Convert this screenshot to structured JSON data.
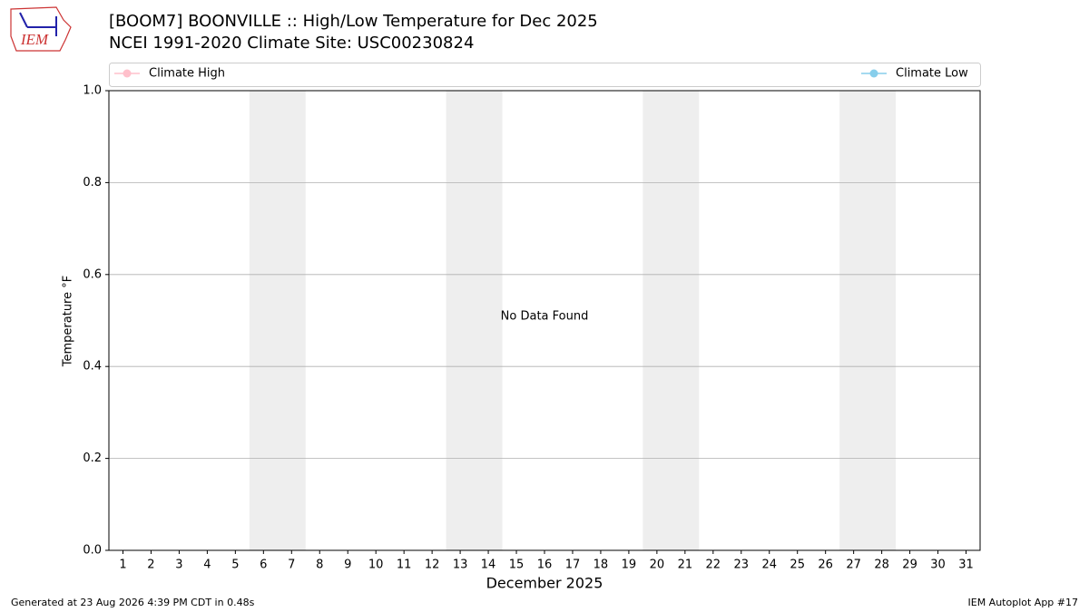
{
  "chart_data": {
    "type": "line",
    "title": "[BOOM7] BOONVILLE :: High/Low Temperature for Dec 2025",
    "subtitle": "NCEI 1991-2020 Climate Site: USC00230824",
    "xlabel": "December 2025",
    "ylabel": "Temperature °F",
    "annotation": "No Data Found",
    "logo_text": "IEM",
    "footer_left": "Generated at 23 Aug 2026 4:39 PM CDT in 0.48s",
    "footer_right": "IEM Autoplot App #17",
    "x": [
      1,
      2,
      3,
      4,
      5,
      6,
      7,
      8,
      9,
      10,
      11,
      12,
      13,
      14,
      15,
      16,
      17,
      18,
      19,
      20,
      21,
      22,
      23,
      24,
      25,
      26,
      27,
      28,
      29,
      30,
      31
    ],
    "series": [
      {
        "name": "Climate High",
        "color": "#ffc0cb",
        "values": [
          null,
          null,
          null,
          null,
          null,
          null,
          null,
          null,
          null,
          null,
          null,
          null,
          null,
          null,
          null,
          null,
          null,
          null,
          null,
          null,
          null,
          null,
          null,
          null,
          null,
          null,
          null,
          null,
          null,
          null,
          null
        ]
      },
      {
        "name": "Climate Low",
        "color": "#87ceeb",
        "values": [
          null,
          null,
          null,
          null,
          null,
          null,
          null,
          null,
          null,
          null,
          null,
          null,
          null,
          null,
          null,
          null,
          null,
          null,
          null,
          null,
          null,
          null,
          null,
          null,
          null,
          null,
          null,
          null,
          null,
          null,
          null
        ]
      }
    ],
    "weekend_shading": [
      [
        6,
        7
      ],
      [
        13,
        14
      ],
      [
        20,
        21
      ],
      [
        27,
        28
      ]
    ],
    "shading_color": "#eeeeee",
    "xlim": [
      0.5,
      31.5
    ],
    "xticks": [
      1,
      2,
      3,
      4,
      5,
      6,
      7,
      8,
      9,
      10,
      11,
      12,
      13,
      14,
      15,
      16,
      17,
      18,
      19,
      20,
      21,
      22,
      23,
      24,
      25,
      26,
      27,
      28,
      29,
      30,
      31
    ],
    "ylim": [
      0,
      1
    ],
    "yticks": [
      {
        "value": 0,
        "label": "0.0"
      },
      {
        "value": 0.2,
        "label": "0.2"
      },
      {
        "value": 0.4,
        "label": "0.4"
      },
      {
        "value": 0.6,
        "label": "0.6"
      },
      {
        "value": 0.8,
        "label": "0.8"
      },
      {
        "value": 1,
        "label": "1.0"
      }
    ],
    "grid": true
  }
}
